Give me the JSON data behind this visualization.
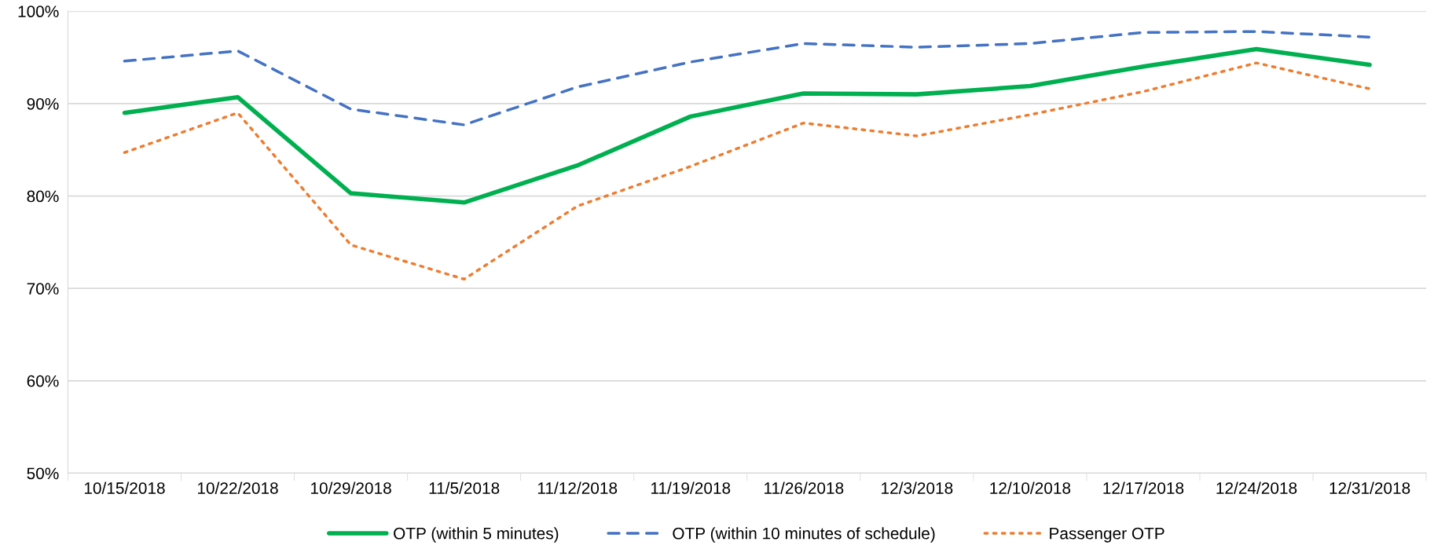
{
  "chart_data": {
    "type": "line",
    "categories": [
      "10/15/2018",
      "10/22/2018",
      "10/29/2018",
      "11/5/2018",
      "11/12/2018",
      "11/19/2018",
      "11/26/2018",
      "12/3/2018",
      "12/10/2018",
      "12/17/2018",
      "12/24/2018",
      "12/31/2018"
    ],
    "series": [
      {
        "name": "OTP (within 5 minutes)",
        "color": "#00b050",
        "line_style": "solid",
        "values": [
          89.0,
          90.7,
          80.3,
          79.3,
          83.3,
          88.6,
          91.1,
          91.0,
          91.9,
          94.0,
          95.9,
          94.2
        ]
      },
      {
        "name": "OTP (within 10 minutes of schedule)",
        "color": "#4472c4",
        "line_style": "dashed",
        "values": [
          94.6,
          95.7,
          89.4,
          87.7,
          91.8,
          94.5,
          96.5,
          96.1,
          96.5,
          97.7,
          97.8,
          97.2
        ]
      },
      {
        "name": "Passenger OTP",
        "color": "#ed7d31",
        "line_style": "dotted",
        "values": [
          84.7,
          89.0,
          74.7,
          71.0,
          78.9,
          83.2,
          87.9,
          86.5,
          88.8,
          91.3,
          94.4,
          91.6
        ]
      }
    ],
    "ylim": [
      50,
      100
    ],
    "yticks": [
      {
        "value": 50,
        "label": "50%"
      },
      {
        "value": 60,
        "label": "60%"
      },
      {
        "value": 70,
        "label": "70%"
      },
      {
        "value": 80,
        "label": "80%"
      },
      {
        "value": 90,
        "label": "90%"
      },
      {
        "value": 100,
        "label": "100%"
      }
    ],
    "grid": "y",
    "legend": "bottom",
    "marker": "none"
  }
}
